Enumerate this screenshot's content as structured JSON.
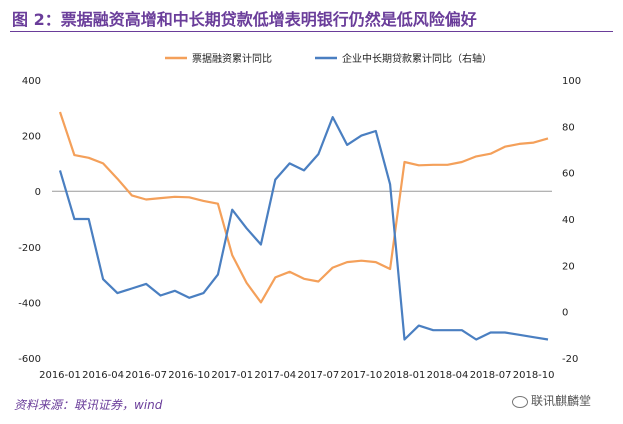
{
  "title": "图 2：票据融资高增和中长期贷款低增表明银行仍然是低风险偏好",
  "source": "资料来源：联讯证券，wind",
  "watermark": "联讯麒麟堂",
  "chart_data": {
    "type": "line",
    "title": "",
    "xlabel": "",
    "ylabel": "",
    "x": [
      "2016-01",
      "2016-02",
      "2016-03",
      "2016-04",
      "2016-05",
      "2016-06",
      "2016-07",
      "2016-08",
      "2016-09",
      "2016-10",
      "2016-11",
      "2016-12",
      "2017-01",
      "2017-02",
      "2017-03",
      "2017-04",
      "2017-05",
      "2017-06",
      "2017-07",
      "2017-08",
      "2017-09",
      "2017-10",
      "2017-11",
      "2017-12",
      "2018-01",
      "2018-02",
      "2018-03",
      "2018-04",
      "2018-05",
      "2018-06",
      "2018-07",
      "2018-08",
      "2018-09",
      "2018-10",
      "2018-11"
    ],
    "x_tick_labels": [
      "2016-01",
      "2016-04",
      "2016-07",
      "2016-10",
      "2017-01",
      "2017-04",
      "2017-07",
      "2017-10",
      "2018-01",
      "2018-04",
      "2018-07",
      "2018-10"
    ],
    "y_left": {
      "ylim": [
        -600,
        400
      ],
      "ticks": [
        "400",
        "200",
        "0",
        "-200",
        "-400",
        "-600"
      ]
    },
    "y_right": {
      "ylim": [
        -20,
        100
      ],
      "ticks": [
        "100",
        "80",
        "60",
        "40",
        "20",
        "0",
        "-20"
      ]
    },
    "legend": "top",
    "grid": false,
    "series": [
      {
        "name": "票据融资累计同比",
        "axis": "left",
        "color": "#f4a05a",
        "values": [
          285,
          130,
          120,
          100,
          45,
          -15,
          -30,
          -25,
          -20,
          -22,
          -35,
          -45,
          -230,
          -330,
          -400,
          -310,
          -290,
          -315,
          -325,
          -275,
          -255,
          -250,
          -255,
          -280,
          105,
          93,
          95,
          95,
          105,
          125,
          135,
          160,
          170,
          175,
          190
        ]
      },
      {
        "name": "企业中长期贷款累计同比（右轴）",
        "axis": "right",
        "color": "#4a7fc1",
        "values": [
          61,
          40,
          40,
          14,
          8,
          10,
          12,
          7,
          9,
          6,
          8,
          16,
          44,
          36,
          29,
          57,
          64,
          61,
          68,
          84,
          72,
          76,
          78,
          55,
          -12,
          -6,
          -8,
          -8,
          -8,
          -12,
          -9,
          -9,
          -10,
          -11,
          -12
        ]
      }
    ]
  }
}
